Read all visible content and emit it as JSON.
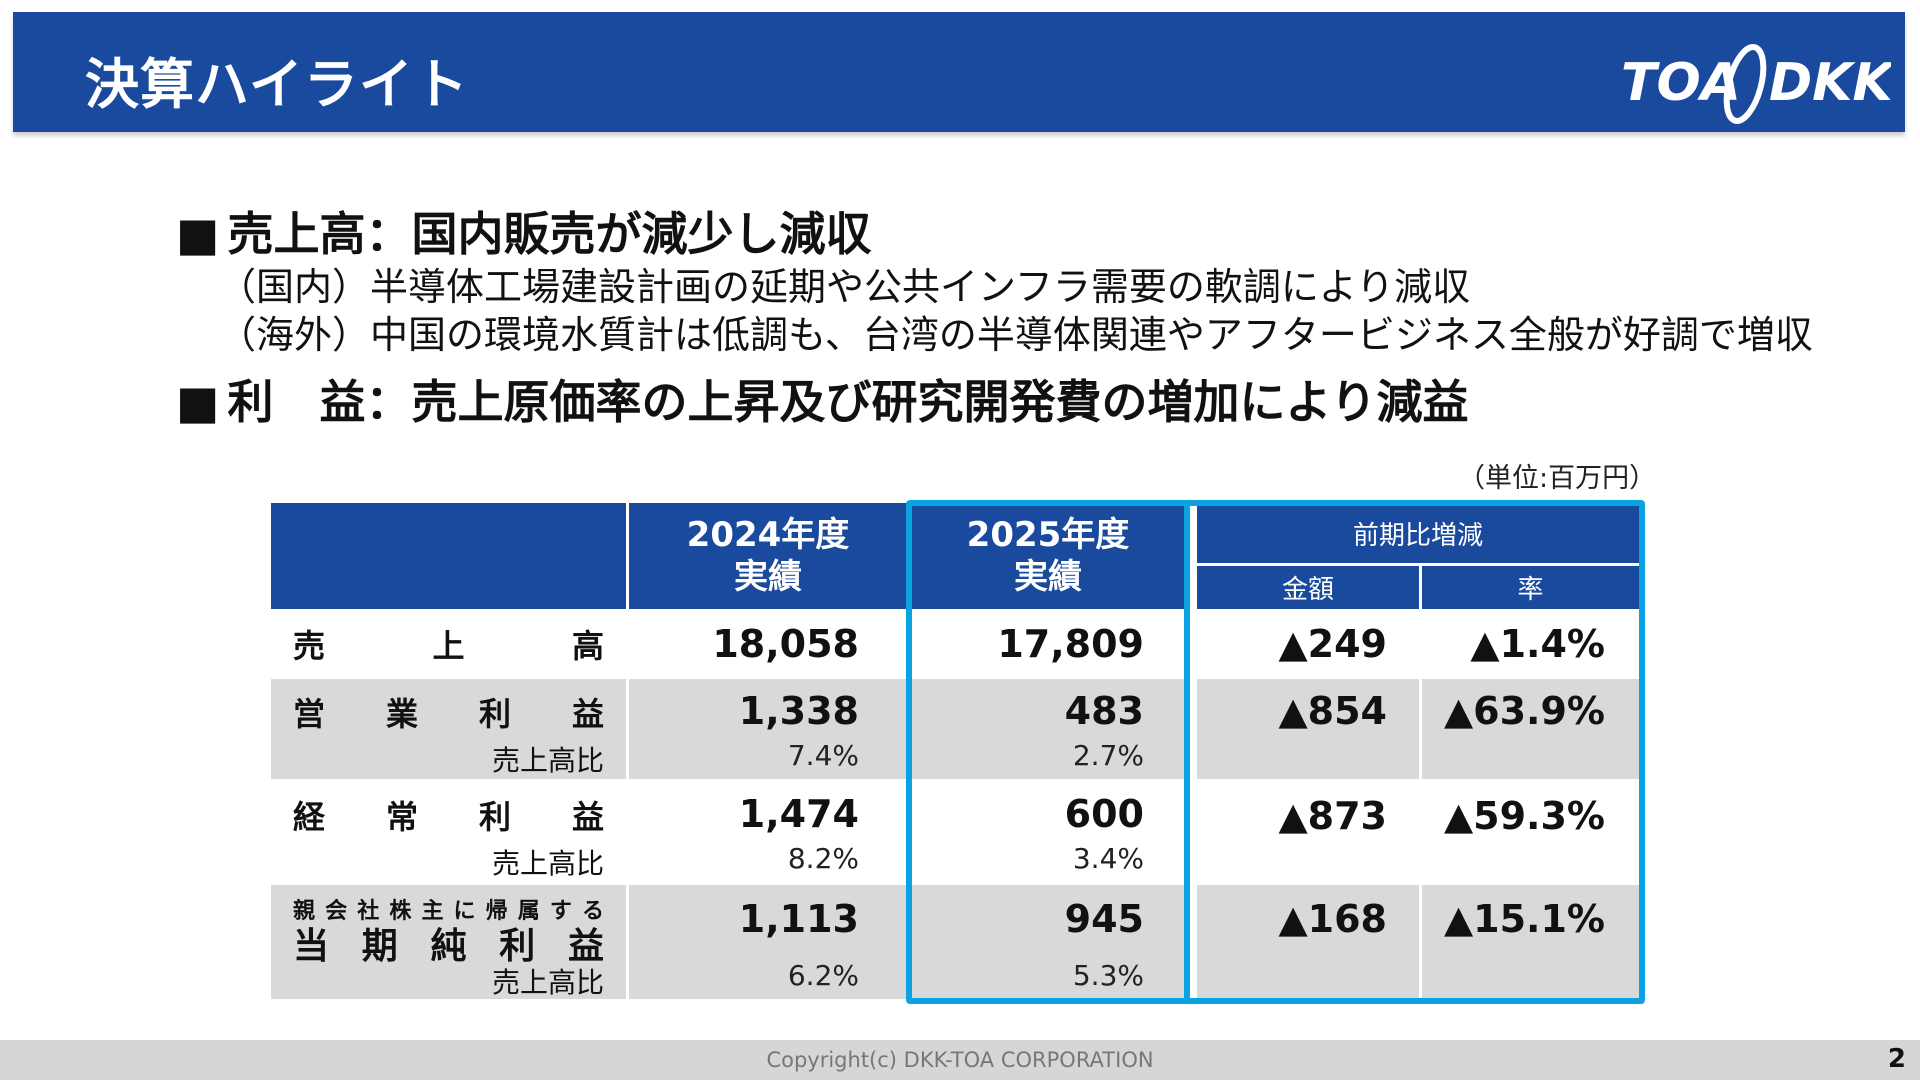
{
  "header": {
    "title": "決算ハイライト",
    "logo_text": "TOA DKK",
    "bg_color": "#1a4a9e"
  },
  "bullets": [
    {
      "square": "■",
      "text": "売上高：国内販売が減少し減収",
      "subs": [
        "（国内）半導体工場建設計画の延期や公共インフラ需要の軟調により減収",
        "（海外）中国の環境水質計は低調も、台湾の半導体関連やアフタービジネス全般が好調で増収"
      ]
    },
    {
      "square": "■",
      "text": "利　益：売上原価率の上昇及び研究開発費の増加により減益",
      "subs": []
    }
  ],
  "unit": "（単位:百万円）",
  "table": {
    "headers": {
      "fy2024": [
        "2024年度",
        "実績"
      ],
      "fy2025": [
        "2025年度",
        "実績"
      ],
      "change": "前期比増減",
      "amount": "金額",
      "rate": "率"
    },
    "rows": [
      {
        "label_chars": [
          "売",
          "上",
          "高"
        ],
        "fy2024": "18,058",
        "fy2025": "17,809",
        "amount": "▲249",
        "rate": "▲1.4%"
      },
      {
        "label_chars": [
          "営",
          "業",
          "利",
          "益"
        ],
        "ratio_label": "売上高比",
        "fy2024": "1,338",
        "fy2024_ratio": "7.4%",
        "fy2025": "483",
        "fy2025_ratio": "2.7%",
        "amount": "▲854",
        "rate": "▲63.9%"
      },
      {
        "label_chars": [
          "経",
          "常",
          "利",
          "益"
        ],
        "ratio_label": "売上高比",
        "fy2024": "1,474",
        "fy2024_ratio": "8.2%",
        "fy2025": "600",
        "fy2025_ratio": "3.4%",
        "amount": "▲873",
        "rate": "▲59.3%"
      },
      {
        "label_small_chars": [
          "親",
          "会",
          "社",
          "株",
          "主",
          "に",
          "帰",
          "属",
          "す",
          "る"
        ],
        "label_chars": [
          "当",
          "期",
          "純",
          "利",
          "益"
        ],
        "ratio_label": "売上高比",
        "fy2024": "1,113",
        "fy2024_ratio": "6.2%",
        "fy2025": "945",
        "fy2025_ratio": "5.3%",
        "amount": "▲168",
        "rate": "▲15.1%"
      }
    ],
    "highlight_color": "#0aa2e0"
  },
  "footer": {
    "copyright": "Copyright(c) DKK-TOA CORPORATION",
    "page": "2"
  }
}
